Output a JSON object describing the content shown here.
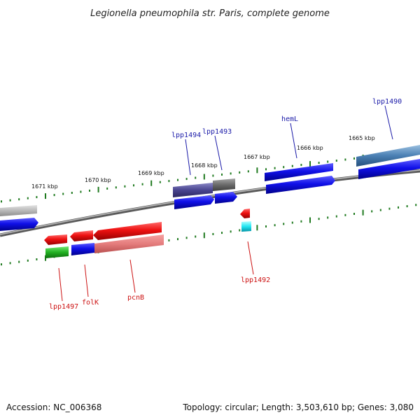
{
  "title": "Legionella pneumophila str. Paris, complete genome",
  "footer": {
    "accession": "Accession: NC_006368",
    "topology": "Topology: circular; Length: 3,503,610 bp; Genes: 3,080"
  },
  "ticks": [
    "1665 kbp",
    "1666 kbp",
    "1667 kbp",
    "1668 kbp",
    "1669 kbp",
    "1670 kbp",
    "1671 kbp"
  ],
  "genes": {
    "top": [
      "lpp1490",
      "hemL",
      "lpp1493",
      "lpp1494"
    ],
    "bottom": [
      "lpp1492",
      "pcnB",
      "folK",
      "lpp1497"
    ]
  },
  "colors": {
    "forward": "#1010e8",
    "reverse": "#ee1111",
    "tick": "#1f7a1f",
    "top_label": "#1a1aa8",
    "bottom_label": "#cc1111"
  }
}
